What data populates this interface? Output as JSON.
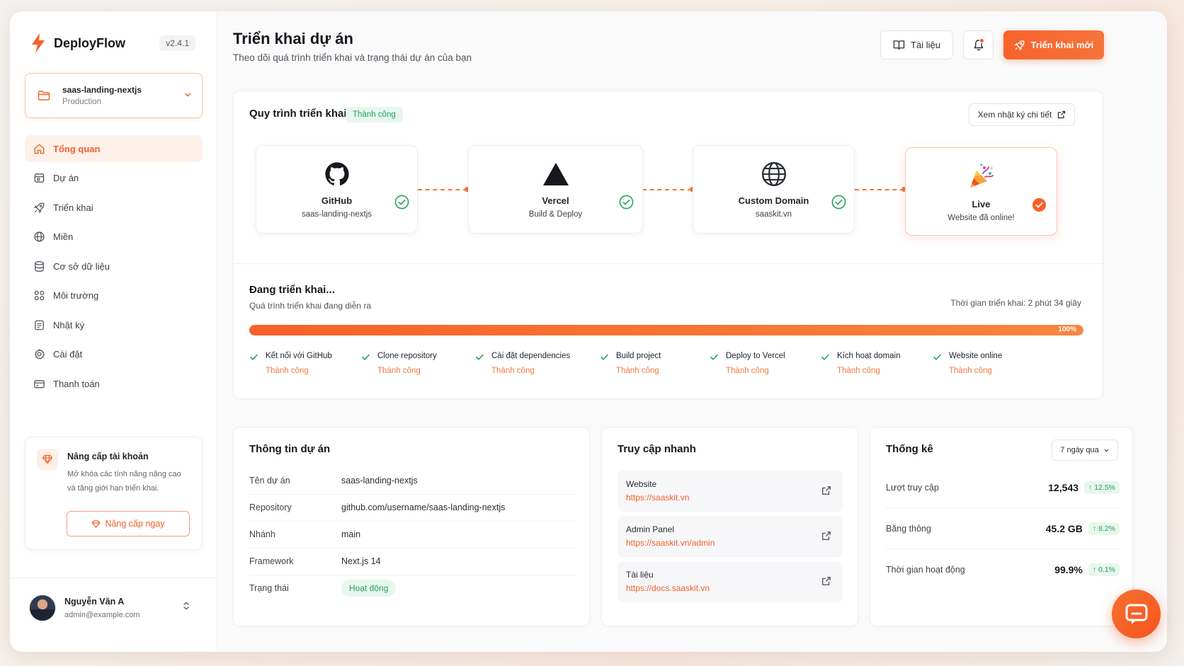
{
  "brand": {
    "name": "DeployFlow",
    "version": "v2.4.1"
  },
  "project": {
    "name": "saas-landing-nextjs",
    "env": "Production"
  },
  "nav": [
    {
      "label": "Tổng quan",
      "icon": "home-icon",
      "active": true
    },
    {
      "label": "Dự án",
      "icon": "folder-icon"
    },
    {
      "label": "Triển khai",
      "icon": "rocket-icon"
    },
    {
      "label": "Miền",
      "icon": "globe-icon"
    },
    {
      "label": "Cơ sở dữ liệu",
      "icon": "database-icon"
    },
    {
      "label": "Môi trường",
      "icon": "environment-icon"
    },
    {
      "label": "Nhật ký",
      "icon": "log-icon"
    },
    {
      "label": "Cài đặt",
      "icon": "gear-icon"
    },
    {
      "label": "Thanh toán",
      "icon": "billing-icon"
    }
  ],
  "upgrade": {
    "title": "Nâng cấp tài khoản",
    "text": "Mở khóa các tính năng nâng cao và tăng giới hạn triển khai.",
    "button": "Nâng cấp ngay"
  },
  "user": {
    "name": "Nguyễn Văn A",
    "email": "admin@example.com"
  },
  "header": {
    "title": "Triển khai dự án",
    "subtitle": "Theo dõi quá trình triển khai và trạng thái dự án của bạn",
    "docs_label": "Tài liệu",
    "deploy_label": "Triển khai mới"
  },
  "pipeline": {
    "title": "Quy trình triển khai",
    "status": "Thành công",
    "log_button": "Xem nhật ký chi tiết",
    "steps": [
      {
        "name": "GitHub",
        "desc": "saas-landing-nextjs",
        "icon": "github-icon"
      },
      {
        "name": "Vercel",
        "desc": "Build & Deploy",
        "icon": "vercel-icon"
      },
      {
        "name": "Custom Domain",
        "desc": "saaskit.vn",
        "icon": "globe-icon"
      },
      {
        "name": "Live",
        "desc": "Website đã online!",
        "icon": "party-popper-icon"
      }
    ]
  },
  "deploy": {
    "title": "Đang triển khai...",
    "subtitle": "Quá trình triển khai đang diễn ra",
    "time": "Thời gian triển khai: 2 phút 34 giây",
    "progress": 100,
    "progress_label": "100%",
    "substeps": [
      {
        "name": "Kết nối với GitHub",
        "status": "Thành công"
      },
      {
        "name": "Clone repository",
        "status": "Thành công"
      },
      {
        "name": "Cài đặt dependencies",
        "status": "Thành công"
      },
      {
        "name": "Build project",
        "status": "Thành công"
      },
      {
        "name": "Deploy to Vercel",
        "status": "Thành công"
      },
      {
        "name": "Kích hoạt domain",
        "status": "Thành công"
      },
      {
        "name": "Website online",
        "status": "Thành công"
      }
    ]
  },
  "info": {
    "title": "Thông tin dự án",
    "rows": [
      {
        "key": "Tên dự án",
        "value": "saas-landing-nextjs"
      },
      {
        "key": "Repository",
        "value": "github.com/username/saas-landing-nextjs"
      },
      {
        "key": "Nhánh",
        "value": "main"
      },
      {
        "key": "Framework",
        "value": "Next.js 14"
      }
    ],
    "status_key": "Trạng thái",
    "status_value": "Hoạt động"
  },
  "quick": {
    "title": "Truy cập nhanh",
    "items": [
      {
        "label": "Website",
        "url": "https://saaskit.vn"
      },
      {
        "label": "Admin Panel",
        "url": "https://saaskit.vn/admin"
      },
      {
        "label": "Tài liệu",
        "url": "https://docs.saaskit.vn"
      }
    ]
  },
  "stats": {
    "title": "Thống kê",
    "range": "7 ngày qua",
    "rows": [
      {
        "label": "Lượt truy cập",
        "value": "12,543",
        "delta": "12.5%"
      },
      {
        "label": "Băng thông",
        "value": "45.2 GB",
        "delta": "8.2%"
      },
      {
        "label": "Thời gian hoạt động",
        "value": "99.9%",
        "delta": "0.1%"
      }
    ]
  },
  "colors": {
    "accent": "#f5612a",
    "success": "#22a05a"
  }
}
